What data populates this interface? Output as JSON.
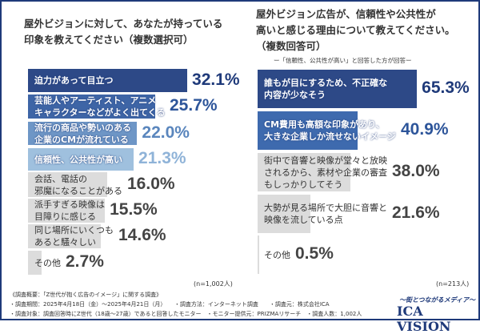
{
  "chart_data": [
    {
      "type": "bar",
      "orientation": "horizontal",
      "title": "屋外ビジョンに対して、あなたが持っている\n印象を教えてください（複数選択可）",
      "categories": [
        "迫力があって目立つ",
        "芸能人やアーティスト、アニメ\nキャラクターなどがよく出てくる",
        "流行の商品や勢いのある\n企業のCMが流れている",
        "信頼性、公共性が高い",
        "会話、電話の\n邪魔になることがある",
        "派手すぎる映像は\n目障りに感じる",
        "同じ場所にいくつも\nあると騒々しい",
        "その他"
      ],
      "values": [
        32.1,
        25.7,
        22.0,
        21.3,
        16.0,
        15.5,
        14.6,
        2.7
      ],
      "labels": [
        "32.1%",
        "25.7%",
        "22.0%",
        "21.3%",
        "16.0%",
        "15.5%",
        "14.6%",
        "2.7%"
      ],
      "colors": [
        "#2d4987",
        "#3e65a6",
        "#6e96c6",
        "#9fc0de",
        "#dcdcdc",
        "#dcdcdc",
        "#dcdcdc",
        "#dcdcdc"
      ],
      "value_colors": [
        "#1f3a7a",
        "#2d559a",
        "#5a86bd",
        "#8fb3d8",
        "#444444",
        "#444444",
        "#444444",
        "#444444"
      ],
      "note": "(n=1,002人)"
    },
    {
      "type": "bar",
      "orientation": "horizontal",
      "title": "屋外ビジョン広告が、信頼性や公共性が\n高いと感じる理由について教えてください。\n（複数回答可）",
      "subtitle": "ー「信頼性、公共性が高い」と回答した方が回答ー",
      "categories": [
        "誰もが目にするため、不正確な\n内容が少なそう",
        "CM費用も高額な印象があり、\n大きな企業しか流せないイメージ",
        "街中で音響と映像が堂々と放映\nされるから、素材や企業の審査\nもしっかりしてそう",
        "大勢が見る場所で大胆に音響と\n映像を流している点",
        "その他"
      ],
      "values": [
        65.3,
        40.9,
        38.0,
        21.6,
        0.5
      ],
      "labels": [
        "65.3%",
        "40.9%",
        "38.0%",
        "21.6%",
        "0.5%"
      ],
      "colors": [
        "#2d4987",
        "#3e6aae",
        "#dcdcdc",
        "#dcdcdc",
        "#dcdcdc"
      ],
      "value_colors": [
        "#1f3a7a",
        "#2d559a",
        "#444444",
        "#444444",
        "#444444"
      ],
      "note": "(n=213人)"
    }
  ],
  "footer": {
    "lines": [
      "《調査概要：「Z世代が抱く広告のイメージ」に関する調査》",
      "・調査期間：2025年4月18日（金）～2025年4月21日（月）　　・調査方法：インターネット調査　　・調査元：株式会社ICA",
      "・調査対象：調査回答時にZ世代（18歳～27歳）であると回答したモニター　・モニター提供元：PRIZMAリサーチ　・調査人数：1,002人"
    ]
  },
  "logo": {
    "tagline": "～街とつながるメディア～",
    "name": "ICA VISION"
  }
}
